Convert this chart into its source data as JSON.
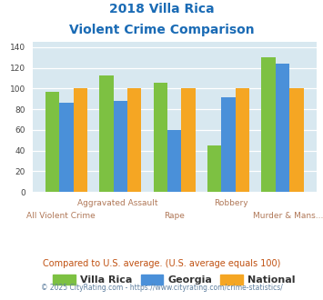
{
  "title_line1": "2018 Villa Rica",
  "title_line2": "Violent Crime Comparison",
  "categories": [
    "All Violent Crime",
    "Aggravated Assault",
    "Rape",
    "Robbery",
    "Murder & Mans..."
  ],
  "villa_rica": [
    97,
    113,
    106,
    45,
    130
  ],
  "georgia": [
    86,
    88,
    60,
    92,
    124
  ],
  "national": [
    100,
    100,
    100,
    100,
    100
  ],
  "color_villa_rica": "#7dc142",
  "color_georgia": "#4a90d9",
  "color_national": "#f5a623",
  "bg_color": "#d8e8f0",
  "ylim": [
    0,
    145
  ],
  "yticks": [
    0,
    20,
    40,
    60,
    80,
    100,
    120,
    140
  ],
  "title_color": "#1a6bb5",
  "xlabel_color_top": "#b07858",
  "xlabel_color_bot": "#b07858",
  "legend_label_color": "#333333",
  "footer_text": "Compared to U.S. average. (U.S. average equals 100)",
  "copyright_text": "© 2025 CityRating.com - https://www.cityrating.com/crime-statistics/",
  "footer_color": "#c05010",
  "copyright_color": "#6080a0"
}
